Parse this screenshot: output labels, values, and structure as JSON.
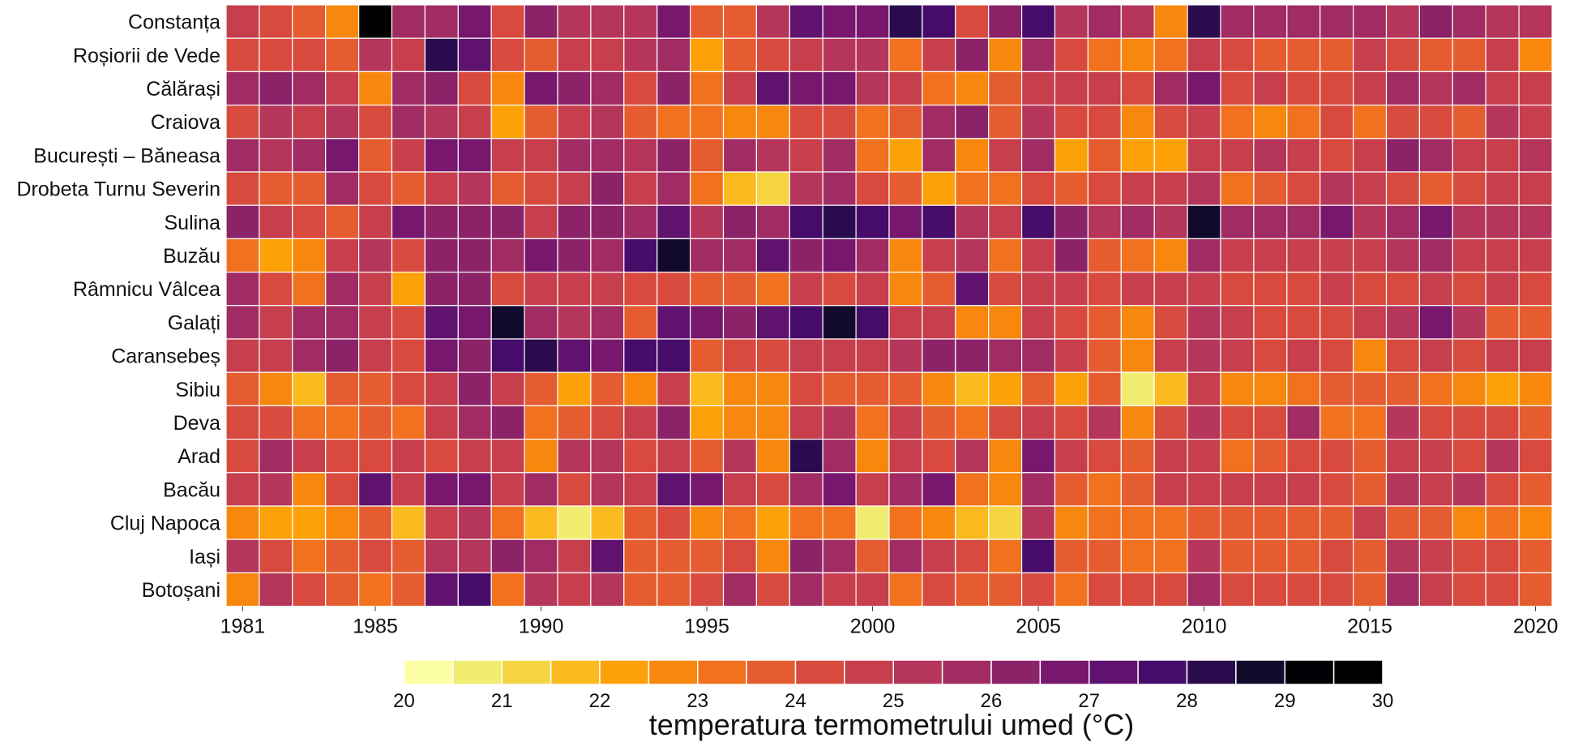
{
  "chart_data": {
    "type": "heatmap",
    "x": [
      1981,
      1982,
      1983,
      1984,
      1985,
      1986,
      1987,
      1988,
      1989,
      1990,
      1991,
      1992,
      1993,
      1994,
      1995,
      1996,
      1997,
      1998,
      1999,
      2000,
      2001,
      2002,
      2003,
      2004,
      2005,
      2006,
      2007,
      2008,
      2009,
      2010,
      2011,
      2012,
      2013,
      2014,
      2015,
      2016,
      2017,
      2018,
      2019,
      2020
    ],
    "x_ticks": [
      "1981",
      "1985",
      "1990",
      "1995",
      "2000",
      "2005",
      "2010",
      "2015",
      "2020"
    ],
    "y": [
      "Constanța",
      "Roșiorii de Vede",
      "Călărași",
      "Craiova",
      "București – Băneasa",
      "Drobeta Turnu Severin",
      "Sulina",
      "Buzău",
      "Râmnicu Vâlcea",
      "Galați",
      "Caransebeș",
      "Sibiu",
      "Deva",
      "Arad",
      "Bacău",
      "Cluj Napoca",
      "Iași",
      "Botoșani"
    ],
    "values": [
      [
        24.5,
        24.2,
        23.8,
        22.6,
        30.0,
        25.5,
        25.8,
        26.5,
        24.4,
        26.3,
        25.0,
        25.0,
        25.0,
        26.5,
        23.9,
        23.7,
        25.0,
        27.3,
        26.8,
        26.5,
        28.3,
        27.8,
        24.3,
        26.0,
        27.6,
        25.0,
        25.5,
        25.3,
        22.8,
        28.0,
        25.5,
        25.6,
        25.5,
        25.6,
        25.5,
        25.2,
        26.0,
        25.5,
        25.2,
        25.0
      ],
      [
        24.3,
        24.3,
        24.2,
        23.5,
        25.0,
        24.5,
        28.0,
        27.0,
        24.3,
        23.5,
        24.5,
        24.5,
        25.0,
        25.5,
        22.3,
        23.8,
        24.0,
        24.5,
        25.0,
        25.3,
        23.3,
        24.5,
        26.0,
        22.5,
        25.5,
        24.0,
        23.0,
        22.5,
        23.0,
        24.5,
        24.0,
        23.5,
        23.5,
        23.8,
        24.5,
        24.3,
        23.5,
        23.8,
        24.5,
        22.5
      ],
      [
        25.5,
        26.0,
        25.5,
        24.5,
        22.8,
        25.5,
        26.0,
        24.0,
        22.5,
        26.5,
        26.0,
        25.5,
        24.0,
        26.0,
        23.0,
        24.5,
        27.3,
        26.5,
        26.8,
        25.0,
        24.5,
        23.0,
        22.8,
        23.5,
        24.5,
        24.5,
        24.5,
        24.0,
        25.5,
        26.8,
        24.0,
        24.5,
        24.0,
        24.0,
        24.5,
        25.8,
        25.0,
        25.5,
        24.5,
        24.5
      ],
      [
        24.3,
        25.0,
        24.8,
        25.0,
        24.0,
        25.5,
        25.0,
        24.5,
        22.3,
        23.5,
        24.5,
        25.0,
        23.5,
        23.0,
        23.0,
        22.8,
        22.5,
        24.3,
        24.0,
        23.0,
        23.8,
        25.5,
        26.0,
        23.5,
        25.0,
        24.0,
        24.0,
        22.5,
        24.0,
        24.5,
        23.0,
        22.8,
        23.0,
        24.0,
        23.0,
        24.0,
        24.0,
        23.5,
        25.0,
        24.5
      ],
      [
        25.5,
        25.0,
        25.5,
        26.5,
        23.5,
        24.5,
        26.5,
        26.5,
        24.5,
        24.5,
        25.5,
        25.5,
        25.0,
        26.0,
        23.8,
        25.5,
        25.0,
        24.5,
        25.5,
        23.0,
        22.0,
        25.5,
        22.5,
        24.5,
        25.5,
        22.0,
        23.5,
        22.0,
        22.3,
        24.5,
        24.5,
        25.0,
        24.5,
        24.0,
        24.5,
        26.0,
        25.5,
        24.5,
        24.5,
        25.0
      ],
      [
        24.0,
        23.5,
        23.5,
        25.5,
        24.0,
        23.5,
        24.5,
        25.0,
        23.5,
        24.0,
        24.5,
        26.0,
        24.5,
        25.8,
        23.0,
        21.8,
        21.3,
        25.0,
        25.5,
        24.0,
        23.5,
        22.0,
        23.3,
        23.0,
        24.0,
        23.5,
        24.0,
        24.5,
        24.5,
        25.0,
        23.0,
        23.5,
        24.0,
        25.0,
        24.5,
        24.0,
        23.5,
        24.0,
        24.5,
        24.5
      ],
      [
        26.0,
        24.5,
        24.0,
        23.5,
        24.5,
        26.5,
        26.0,
        26.0,
        26.0,
        24.5,
        26.0,
        26.0,
        25.5,
        27.0,
        25.0,
        26.0,
        25.5,
        27.8,
        28.0,
        27.5,
        26.5,
        27.5,
        25.0,
        24.5,
        27.5,
        26.0,
        25.0,
        25.5,
        25.0,
        28.5,
        25.5,
        25.5,
        25.5,
        26.5,
        25.0,
        25.5,
        26.5,
        25.0,
        25.0,
        25.0
      ],
      [
        23.0,
        22.3,
        22.8,
        24.5,
        25.0,
        24.0,
        26.0,
        26.0,
        25.5,
        26.5,
        26.0,
        25.5,
        27.5,
        28.5,
        25.5,
        25.5,
        27.3,
        26.0,
        26.5,
        25.5,
        22.8,
        24.5,
        25.0,
        23.0,
        24.5,
        26.0,
        23.5,
        23.0,
        22.5,
        25.5,
        24.5,
        24.5,
        24.5,
        24.5,
        24.5,
        25.0,
        25.5,
        24.5,
        24.5,
        24.5
      ],
      [
        25.5,
        24.0,
        23.0,
        25.5,
        24.5,
        22.3,
        26.0,
        26.0,
        24.0,
        24.5,
        24.5,
        24.5,
        24.0,
        24.0,
        23.5,
        23.5,
        23.0,
        24.5,
        24.0,
        24.5,
        22.8,
        23.5,
        27.0,
        24.0,
        24.5,
        24.5,
        24.0,
        24.5,
        24.5,
        24.5,
        24.0,
        24.0,
        24.0,
        24.5,
        24.0,
        24.0,
        24.5,
        24.0,
        24.5,
        24.0
      ],
      [
        25.5,
        24.5,
        25.5,
        25.5,
        24.5,
        24.0,
        27.3,
        26.5,
        28.5,
        25.5,
        25.0,
        25.5,
        23.5,
        27.0,
        26.5,
        26.0,
        27.0,
        27.5,
        28.5,
        27.5,
        24.5,
        24.5,
        22.8,
        22.8,
        24.5,
        24.0,
        23.5,
        22.5,
        24.0,
        25.0,
        24.5,
        24.0,
        24.0,
        24.0,
        24.5,
        25.0,
        26.5,
        25.0,
        23.5,
        23.5
      ],
      [
        24.5,
        24.5,
        25.5,
        26.0,
        24.5,
        24.0,
        26.5,
        26.0,
        27.5,
        28.0,
        27.0,
        26.5,
        27.5,
        27.8,
        23.8,
        24.0,
        24.0,
        24.5,
        24.5,
        24.5,
        25.0,
        26.0,
        26.0,
        25.5,
        25.8,
        24.5,
        23.5,
        22.5,
        24.5,
        25.0,
        24.5,
        24.0,
        24.5,
        24.0,
        22.8,
        24.0,
        24.5,
        24.0,
        24.5,
        24.5
      ],
      [
        23.5,
        22.5,
        21.5,
        23.5,
        23.5,
        24.0,
        24.5,
        26.0,
        24.5,
        23.5,
        22.3,
        23.5,
        22.5,
        24.5,
        21.5,
        22.5,
        22.5,
        24.0,
        23.5,
        23.8,
        23.5,
        22.5,
        21.5,
        22.0,
        23.5,
        22.3,
        23.5,
        20.8,
        21.5,
        24.5,
        22.5,
        22.5,
        23.0,
        23.5,
        23.5,
        23.5,
        23.0,
        22.5,
        22.3,
        22.5
      ],
      [
        24.0,
        24.0,
        23.0,
        23.0,
        23.5,
        23.0,
        24.5,
        25.5,
        26.0,
        23.0,
        23.5,
        24.0,
        24.5,
        26.0,
        22.3,
        22.5,
        22.5,
        24.5,
        25.0,
        23.0,
        24.5,
        23.5,
        23.0,
        24.0,
        24.5,
        24.0,
        25.0,
        22.5,
        24.0,
        25.0,
        24.0,
        24.0,
        25.5,
        23.0,
        23.0,
        25.0,
        24.0,
        24.0,
        24.0,
        23.5
      ],
      [
        24.0,
        25.5,
        24.5,
        24.0,
        24.0,
        24.5,
        24.0,
        24.5,
        24.5,
        22.5,
        25.0,
        25.0,
        24.0,
        24.5,
        23.5,
        25.0,
        22.5,
        28.0,
        25.5,
        22.5,
        24.5,
        24.0,
        25.0,
        22.5,
        26.5,
        24.5,
        24.0,
        23.5,
        24.5,
        24.5,
        23.0,
        23.5,
        24.0,
        24.0,
        23.5,
        24.5,
        24.5,
        24.0,
        25.0,
        24.0
      ],
      [
        24.5,
        25.0,
        22.5,
        24.0,
        27.0,
        24.5,
        26.5,
        26.5,
        24.5,
        25.5,
        24.0,
        25.0,
        24.5,
        27.0,
        26.5,
        24.5,
        24.0,
        25.5,
        26.5,
        24.5,
        25.5,
        26.5,
        23.0,
        22.5,
        25.5,
        23.5,
        23.0,
        23.5,
        24.5,
        24.5,
        24.5,
        24.5,
        24.5,
        24.0,
        23.5,
        25.0,
        24.5,
        25.0,
        24.0,
        23.5
      ],
      [
        22.5,
        22.0,
        22.0,
        22.5,
        23.5,
        21.5,
        24.5,
        25.0,
        23.0,
        21.5,
        20.8,
        21.5,
        23.5,
        24.0,
        22.5,
        23.0,
        22.3,
        23.0,
        23.0,
        20.8,
        23.0,
        22.5,
        21.5,
        21.0,
        25.0,
        22.5,
        23.0,
        23.0,
        23.0,
        23.5,
        23.5,
        23.5,
        23.5,
        23.5,
        24.5,
        23.5,
        23.5,
        22.8,
        23.0,
        22.5
      ],
      [
        25.0,
        24.0,
        23.0,
        23.5,
        24.0,
        23.5,
        25.0,
        25.0,
        26.0,
        25.5,
        24.5,
        27.0,
        23.5,
        23.5,
        23.5,
        24.0,
        22.5,
        26.0,
        25.5,
        23.5,
        25.5,
        24.5,
        24.0,
        23.0,
        27.5,
        23.5,
        23.5,
        23.0,
        23.0,
        25.0,
        23.5,
        23.5,
        23.5,
        24.0,
        23.5,
        25.0,
        24.5,
        24.0,
        24.0,
        23.5
      ],
      [
        22.5,
        25.0,
        24.0,
        23.5,
        23.0,
        23.5,
        27.0,
        27.5,
        23.0,
        25.0,
        24.5,
        25.0,
        23.5,
        23.5,
        24.0,
        25.5,
        24.0,
        25.5,
        24.5,
        24.5,
        23.0,
        24.0,
        23.5,
        23.5,
        24.0,
        23.0,
        24.0,
        24.0,
        24.0,
        25.5,
        24.0,
        24.0,
        24.0,
        24.0,
        23.5,
        25.5,
        24.5,
        24.0,
        24.0,
        23.5
      ]
    ],
    "colorbar": {
      "label": "temperatura termometrului umed (°C)",
      "min": 20,
      "max": 30,
      "ticks": [
        "20",
        "21",
        "22",
        "23",
        "24",
        "25",
        "26",
        "27",
        "28",
        "29",
        "30"
      ],
      "palette": [
        "#fcffa4",
        "#f1ed71",
        "#f6d543",
        "#fbba1f",
        "#fca108",
        "#f8870e",
        "#f1711f",
        "#e55c30",
        "#d84a3e",
        "#c73e4c",
        "#b5365a",
        "#a12c64",
        "#8c2369",
        "#77186e",
        "#5f136e",
        "#470b6a",
        "#2a0c4e",
        "#120a2c",
        "#000004",
        "#000000"
      ]
    },
    "grid": false,
    "legend": "bottom"
  }
}
